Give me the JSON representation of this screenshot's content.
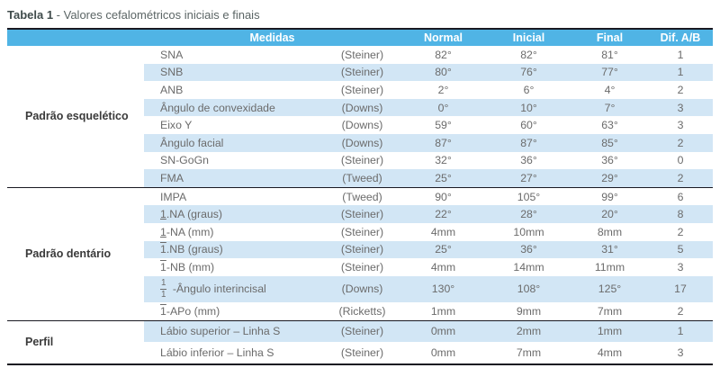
{
  "title": {
    "label": "Tabela 1",
    "rest": " - Valores cefalométricos iniciais e finais"
  },
  "table": {
    "header": {
      "medidas": "Medidas",
      "normal": "Normal",
      "inicial": "Inicial",
      "final": "Final",
      "dif": "Dif. A/B"
    },
    "sections": [
      {
        "label": "Padrão esquelético",
        "rows": [
          {
            "measure": "SNA",
            "method": "(Steiner)",
            "normal": "82°",
            "inicial": "82°",
            "final": "81°",
            "dif": "1"
          },
          {
            "measure": "SNB",
            "method": "(Steiner)",
            "normal": "80°",
            "inicial": "76°",
            "final": "77°",
            "dif": "1"
          },
          {
            "measure": "ANB",
            "method": "(Steiner)",
            "normal": "2°",
            "inicial": "6°",
            "final": "4°",
            "dif": "2"
          },
          {
            "measure": "Ângulo de convexidade",
            "method": "(Downs)",
            "normal": "0°",
            "inicial": "10°",
            "final": "7°",
            "dif": "3"
          },
          {
            "measure": "Eixo Y",
            "method": "(Downs)",
            "normal": "59°",
            "inicial": "60°",
            "final": "63°",
            "dif": "3"
          },
          {
            "measure": "Ângulo facial",
            "method": "(Downs)",
            "normal": "87°",
            "inicial": "87°",
            "final": "85°",
            "dif": "2"
          },
          {
            "measure": "SN-GoGn",
            "method": "(Steiner)",
            "normal": "32°",
            "inicial": "36°",
            "final": "36°",
            "dif": "0"
          },
          {
            "measure": "FMA",
            "method": "(Tweed)",
            "normal": "25°",
            "inicial": "27°",
            "final": "29°",
            "dif": "2"
          }
        ]
      },
      {
        "label": "Padrão dentário",
        "rows": [
          {
            "measure": "IMPA",
            "method": "(Tweed)",
            "normal": "90°",
            "inicial": "105°",
            "final": "99°",
            "dif": "6"
          },
          {
            "tooth": "1",
            "tooth_mark": "underline",
            "measure": ".NA (graus)",
            "method": "(Steiner)",
            "normal": "22°",
            "inicial": "28°",
            "final": "20°",
            "dif": "8"
          },
          {
            "tooth": "1",
            "tooth_mark": "underline",
            "measure": "-NA (mm)",
            "method": "(Steiner)",
            "normal": "4mm",
            "inicial": "10mm",
            "final": "8mm",
            "dif": "2"
          },
          {
            "tooth": "1",
            "tooth_mark": "overline",
            "measure": ".NB (graus)",
            "method": "(Steiner)",
            "normal": "25°",
            "inicial": "36°",
            "final": "31°",
            "dif": "5"
          },
          {
            "tooth": "1",
            "tooth_mark": "overline",
            "measure": "-NB (mm)",
            "method": "(Steiner)",
            "normal": "4mm",
            "inicial": "14mm",
            "final": "11mm",
            "dif": "3"
          },
          {
            "tooth": "1/1",
            "tooth_mark": "fraction",
            "tall": true,
            "measure": " -Ângulo interincisal",
            "method": "(Downs)",
            "normal": "130°",
            "inicial": "108°",
            "final": "125°",
            "dif": "17"
          },
          {
            "tooth": "1",
            "tooth_mark": "overline",
            "measure": "-APo (mm)",
            "method": "(Ricketts)",
            "normal": "1mm",
            "inicial": "9mm",
            "final": "7mm",
            "dif": "2"
          }
        ]
      },
      {
        "label": "Perfil",
        "rows": [
          {
            "measure": "Lábio superior – Linha S",
            "method": "(Steiner)",
            "normal": "0mm",
            "inicial": "2mm",
            "final": "1mm",
            "dif": "1"
          },
          {
            "measure": "Lábio inferior – Linha S",
            "method": "(Steiner)",
            "normal": "0mm",
            "inicial": "7mm",
            "final": "4mm",
            "dif": "3"
          }
        ]
      }
    ]
  },
  "colors": {
    "header_bg": "#50B4E5",
    "row_alt_bg": "#D2E6F5",
    "border_dark": "#191922",
    "body_text": "#6b6b6b",
    "section_text": "#3a3a3a",
    "header_text": "#ffffff",
    "title_text": "#3f4b4b",
    "title_rest_text": "#5b6565"
  }
}
